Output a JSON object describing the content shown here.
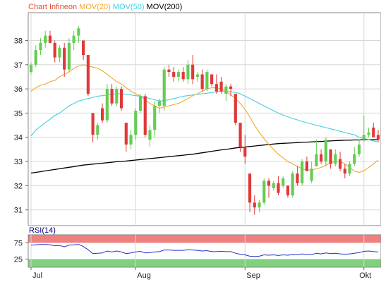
{
  "chart_data": {
    "type": "candlestick",
    "title": "Chart Infineon",
    "legend": [
      {
        "label": "MOV(20)",
        "color": "#f0a830"
      },
      {
        "label": "MOV(50)",
        "color": "#40d0e0"
      },
      {
        "label": "MOV(200)",
        "color": "#000000"
      }
    ],
    "title_color": "#e05030",
    "up_color": "#66cc55",
    "down_color": "#e03838",
    "ylim": [
      30.35,
      39.15
    ],
    "yticks": [
      31,
      32,
      33,
      34,
      35,
      36,
      37,
      38
    ],
    "xlabels": [
      {
        "label": "Jul",
        "index": 0
      },
      {
        "label": "Aug",
        "index": 22
      },
      {
        "label": "Sep",
        "index": 45
      },
      {
        "label": "Okt",
        "index": 70
      }
    ],
    "candles": [
      [
        36.7,
        37.1,
        36.6,
        37.0
      ],
      [
        37.0,
        37.8,
        36.9,
        37.6
      ],
      [
        37.6,
        38.1,
        37.4,
        37.9
      ],
      [
        37.9,
        38.4,
        37.7,
        38.2
      ],
      [
        38.2,
        38.4,
        37.9,
        37.9
      ],
      [
        37.9,
        38.0,
        37.1,
        37.3
      ],
      [
        37.3,
        37.8,
        37.1,
        37.7
      ],
      [
        37.7,
        37.9,
        36.5,
        36.8
      ],
      [
        36.8,
        38.1,
        36.7,
        37.9
      ],
      [
        37.9,
        38.4,
        37.6,
        38.2
      ],
      [
        38.2,
        38.6,
        37.9,
        38.5
      ],
      [
        38.0,
        38.0,
        37.2,
        37.4
      ],
      [
        37.4,
        37.4,
        35.7,
        35.8
      ],
      [
        35.0,
        35.0,
        33.8,
        34.1
      ],
      [
        34.1,
        34.6,
        33.9,
        34.5
      ],
      [
        35.2,
        35.4,
        34.6,
        34.7
      ],
      [
        34.7,
        36.2,
        34.6,
        36.0
      ],
      [
        36.0,
        36.2,
        35.3,
        35.4
      ],
      [
        35.4,
        36.1,
        35.3,
        36.0
      ],
      [
        36.0,
        36.1,
        35.1,
        35.2
      ],
      [
        34.6,
        34.6,
        33.4,
        33.7
      ],
      [
        33.7,
        34.3,
        33.5,
        34.1
      ],
      [
        34.1,
        35.2,
        33.9,
        35.1
      ],
      [
        35.1,
        35.8,
        35.0,
        35.7
      ],
      [
        35.7,
        35.8,
        34.0,
        34.1
      ],
      [
        33.9,
        34.5,
        33.6,
        34.3
      ],
      [
        34.3,
        35.5,
        34.0,
        35.3
      ],
      [
        35.3,
        35.6,
        35.0,
        35.5
      ],
      [
        35.3,
        36.9,
        35.1,
        36.8
      ],
      [
        36.8,
        37.0,
        36.5,
        36.7
      ],
      [
        36.7,
        36.9,
        36.3,
        36.5
      ],
      [
        36.5,
        36.8,
        36.3,
        36.7
      ],
      [
        36.7,
        36.9,
        36.3,
        36.4
      ],
      [
        36.4,
        37.2,
        36.2,
        37.0
      ],
      [
        37.0,
        37.4,
        36.2,
        36.4
      ],
      [
        36.5,
        36.7,
        36.3,
        36.6
      ],
      [
        36.6,
        36.8,
        35.9,
        36.0
      ],
      [
        36.0,
        36.8,
        35.9,
        36.7
      ],
      [
        36.6,
        36.6,
        36.1,
        36.2
      ],
      [
        36.2,
        36.6,
        35.8,
        35.9
      ],
      [
        36.3,
        36.5,
        35.8,
        35.9
      ],
      [
        35.8,
        36.2,
        35.5,
        36.1
      ],
      [
        36.1,
        36.2,
        35.7,
        36.0
      ],
      [
        35.8,
        35.8,
        34.5,
        34.6
      ],
      [
        34.6,
        34.6,
        33.4,
        33.6
      ],
      [
        33.6,
        34.1,
        32.9,
        33.2
      ],
      [
        32.5,
        32.5,
        30.9,
        31.3
      ],
      [
        31.3,
        31.6,
        30.8,
        31.1
      ],
      [
        31.1,
        31.4,
        30.9,
        31.3
      ],
      [
        31.3,
        32.3,
        31.2,
        32.2
      ],
      [
        32.2,
        32.3,
        31.5,
        32.0
      ],
      [
        31.9,
        32.2,
        31.8,
        32.1
      ],
      [
        32.1,
        32.4,
        31.6,
        31.7
      ],
      [
        32.0,
        32.4,
        31.9,
        32.3
      ],
      [
        32.0,
        32.0,
        31.5,
        31.6
      ],
      [
        31.6,
        32.6,
        31.5,
        32.5
      ],
      [
        32.5,
        32.8,
        32.0,
        32.1
      ],
      [
        32.1,
        33.1,
        32.0,
        33.0
      ],
      [
        33.0,
        33.2,
        32.6,
        32.6
      ],
      [
        32.2,
        33.0,
        32.1,
        32.7
      ],
      [
        32.8,
        33.9,
        32.8,
        33.3
      ],
      [
        33.3,
        33.5,
        32.9,
        33.0
      ],
      [
        33.0,
        34.0,
        32.8,
        33.9
      ],
      [
        33.5,
        33.5,
        32.7,
        32.9
      ],
      [
        32.9,
        33.5,
        32.8,
        33.3
      ],
      [
        33.1,
        33.4,
        32.6,
        32.7
      ],
      [
        32.7,
        32.9,
        32.3,
        32.5
      ],
      [
        32.5,
        33.0,
        32.4,
        32.9
      ],
      [
        32.9,
        33.6,
        32.8,
        33.3
      ],
      [
        33.3,
        33.9,
        33.2,
        33.7
      ],
      [
        33.9,
        34.9,
        33.8,
        34.1
      ],
      [
        34.1,
        34.4,
        34.0,
        34.2
      ],
      [
        34.4,
        34.6,
        34.0,
        34.0
      ],
      [
        34.1,
        34.3,
        33.8,
        33.9
      ]
    ],
    "ma20": [
      35.9,
      36.05,
      36.15,
      36.2,
      36.3,
      36.35,
      36.5,
      36.6,
      36.7,
      36.85,
      36.95,
      37.0,
      36.95,
      36.9,
      36.85,
      36.75,
      36.6,
      36.45,
      36.3,
      36.2,
      36.05,
      35.9,
      35.8,
      35.7,
      35.55,
      35.4,
      35.3,
      35.2,
      35.25,
      35.3,
      35.35,
      35.4,
      35.5,
      35.6,
      35.72,
      35.8,
      35.9,
      36.0,
      36.05,
      36.05,
      36.0,
      35.9,
      35.75,
      35.6,
      35.4,
      35.15,
      34.85,
      34.5,
      34.2,
      33.95,
      33.7,
      33.5,
      33.3,
      33.15,
      33.0,
      32.9,
      32.8,
      32.7,
      32.65,
      32.65,
      32.7,
      32.75,
      32.85,
      32.95,
      33.0,
      33.0,
      32.9,
      32.75,
      32.6,
      32.55,
      32.62,
      32.75,
      32.9,
      33.05
    ],
    "ma50": [
      34.05,
      34.3,
      34.45,
      34.6,
      34.75,
      34.9,
      35.0,
      35.15,
      35.3,
      35.4,
      35.5,
      35.55,
      35.6,
      35.65,
      35.7,
      35.72,
      35.75,
      35.78,
      35.8,
      35.8,
      35.78,
      35.75,
      35.72,
      35.7,
      35.65,
      35.6,
      35.55,
      35.5,
      35.52,
      35.55,
      35.6,
      35.65,
      35.7,
      35.72,
      35.75,
      35.78,
      35.8,
      35.82,
      35.85,
      35.88,
      35.9,
      35.9,
      35.88,
      35.85,
      35.8,
      35.7,
      35.6,
      35.5,
      35.4,
      35.3,
      35.2,
      35.1,
      35.0,
      34.92,
      34.85,
      34.78,
      34.72,
      34.66,
      34.6,
      34.55,
      34.5,
      34.45,
      34.4,
      34.35,
      34.3,
      34.25,
      34.2,
      34.15,
      34.1,
      34.0,
      33.95,
      33.9,
      33.85,
      33.8
    ],
    "ma200": [
      32.52,
      32.55,
      32.58,
      32.61,
      32.64,
      32.67,
      32.7,
      32.73,
      32.76,
      32.79,
      32.82,
      32.85,
      32.87,
      32.89,
      32.91,
      32.93,
      32.95,
      32.97,
      32.99,
      33.0,
      33.02,
      33.04,
      33.06,
      33.08,
      33.1,
      33.12,
      33.14,
      33.16,
      33.18,
      33.2,
      33.22,
      33.24,
      33.26,
      33.28,
      33.3,
      33.33,
      33.36,
      33.39,
      33.42,
      33.45,
      33.48,
      33.5,
      33.53,
      33.56,
      33.58,
      33.6,
      33.62,
      33.64,
      33.66,
      33.68,
      33.7,
      33.72,
      33.74,
      33.75,
      33.76,
      33.77,
      33.78,
      33.79,
      33.8,
      33.81,
      33.82,
      33.83,
      33.84,
      33.85,
      33.86,
      33.87,
      33.88,
      33.88,
      33.89,
      33.89,
      33.9,
      33.9,
      33.9,
      33.9
    ],
    "rsi": {
      "label": "RSI(14)",
      "label_color": "#000088",
      "line_color": "#2030d0",
      "ylim": [
        0,
        100
      ],
      "yticks": [
        25,
        75
      ],
      "overbought": 75,
      "oversold": 25,
      "overbought_color": "#f08080",
      "oversold_color": "#80d080",
      "values": [
        68,
        69,
        70,
        70,
        69,
        66,
        67,
        63,
        68,
        69,
        70,
        64,
        54,
        42,
        43,
        44,
        50,
        47,
        50,
        47,
        42,
        44,
        47,
        49,
        44,
        45,
        47,
        48,
        53,
        53,
        52,
        52,
        52,
        54,
        53,
        52,
        50,
        51,
        48,
        48,
        49,
        48,
        48,
        43,
        40,
        38,
        34,
        33,
        34,
        38,
        37,
        38,
        36,
        38,
        37,
        39,
        38,
        41,
        39,
        39,
        43,
        41,
        44,
        42,
        43,
        41,
        40,
        41,
        43,
        45,
        49,
        50,
        48,
        47
      ]
    }
  }
}
